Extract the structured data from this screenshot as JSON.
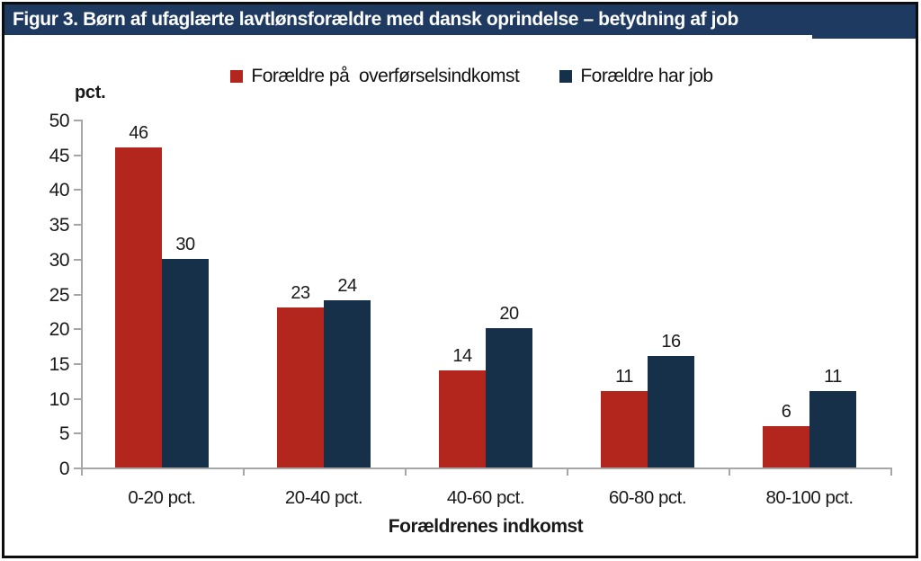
{
  "title": "Figur 3. Børn af ufaglærte lavtlønsforældre med dansk oprindelse – betydning af job",
  "legend": {
    "items": [
      {
        "label": "Forældre på  overførselsindkomst",
        "color": "#b2261d"
      },
      {
        "label": "Forældre har job",
        "color": "#16304a"
      }
    ]
  },
  "chart_data": {
    "type": "bar",
    "title": "Figur 3. Børn af ufaglærte lavtlønsforældre med dansk oprindelse – betydning af job",
    "categories": [
      "0-20 pct.",
      "20-40 pct.",
      "40-60 pct.",
      "60-80 pct.",
      "80-100 pct."
    ],
    "series": [
      {
        "name": "Forældre på overførselsindkomst",
        "color": "#b2261d",
        "values": [
          46,
          23,
          14,
          11,
          6
        ]
      },
      {
        "name": "Forældre har job",
        "color": "#16304a",
        "values": [
          30,
          24,
          20,
          16,
          11
        ]
      }
    ],
    "xlabel": "Forældrenes indkomst",
    "ylabel": "pct.",
    "ylim": [
      0,
      50
    ],
    "ytick_step": 5,
    "grid": false,
    "legend_position": "top",
    "data_labels": true
  },
  "colors": {
    "title_bar_bg": "#1f3a60",
    "title_text": "#ffffff",
    "axis": "#a6a6a6",
    "text": "#1a1a1a",
    "frame_border": "#0d0d0d",
    "series_red": "#b2261d",
    "series_navy": "#16304a"
  }
}
